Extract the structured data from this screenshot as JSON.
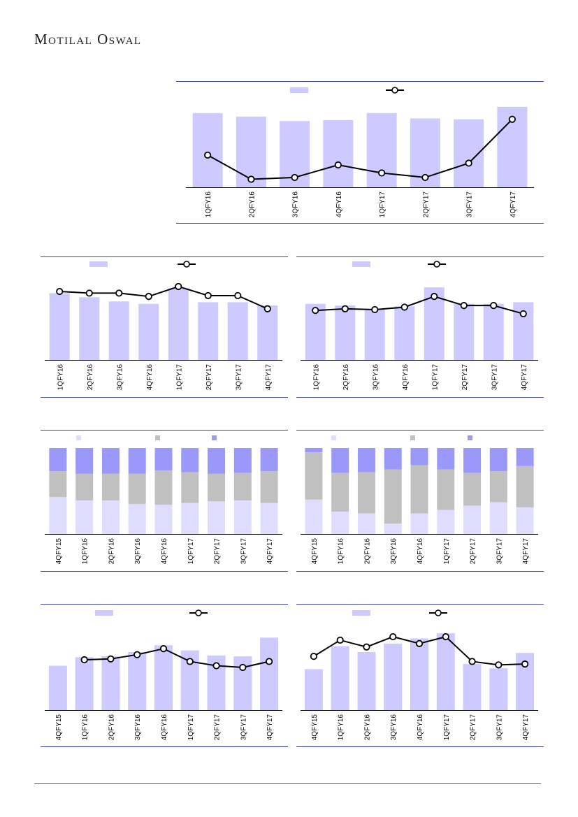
{
  "header": {
    "brand": "Motilal Oswal"
  },
  "colors": {
    "bar": "#cccaff",
    "line": "#000000",
    "rule": "#3b3f9a",
    "seg_light": "#dedcff",
    "seg_grey": "#c0c0c0",
    "seg_dark": "#9a98f8"
  },
  "chart_data": [
    {
      "type": "bar",
      "categories": [
        "1QFY16",
        "2QFY16",
        "3QFY16",
        "4QFY16",
        "1QFY17",
        "2QFY17",
        "3QFY17",
        "4QFY17"
      ],
      "series": [
        {
          "values": [
            83,
            79,
            74,
            75,
            83,
            77,
            76,
            90
          ]
        },
        {
          "values": [
            36,
            9,
            11,
            25,
            16,
            11,
            27,
            76
          ]
        }
      ],
      "ylim": [
        0,
        100
      ]
    },
    {
      "type": "bar",
      "categories": [
        "1QFY16",
        "2QFY16",
        "3QFY16",
        "4QFY16",
        "1QFY17",
        "2QFY17",
        "3QFY17",
        "4QFY17"
      ],
      "series": [
        {
          "values": [
            81,
            76,
            71,
            68,
            87,
            70,
            70,
            66
          ]
        },
        {
          "values": [
            83,
            81,
            81,
            77,
            89,
            78,
            78,
            62
          ]
        }
      ],
      "ylim": [
        0,
        100
      ]
    },
    {
      "type": "bar",
      "categories": [
        "1QFY16",
        "2QFY16",
        "3QFY16",
        "4QFY16",
        "1QFY17",
        "2QFY17",
        "3QFY17",
        "4QFY17"
      ],
      "series": [
        {
          "values": [
            68,
            66,
            62,
            65,
            88,
            68,
            68,
            70
          ]
        },
        {
          "values": [
            60,
            62,
            61,
            64,
            77,
            66,
            66,
            56
          ]
        }
      ],
      "ylim": [
        0,
        100
      ]
    },
    {
      "type": "bar",
      "stacked": true,
      "categories": [
        "4QFY15",
        "1QFY16",
        "2QFY16",
        "3QFY16",
        "4QFY16",
        "1QFY17",
        "2QFY17",
        "3QFY17",
        "4QFY17"
      ],
      "series": [
        {
          "values": [
            43,
            39,
            39,
            35,
            34,
            36,
            38,
            39,
            36
          ]
        },
        {
          "values": [
            30,
            31,
            31,
            35,
            40,
            36,
            32,
            32,
            37
          ]
        },
        {
          "values": [
            27,
            30,
            30,
            30,
            26,
            28,
            30,
            29,
            27
          ]
        }
      ],
      "ylim": [
        0,
        100
      ]
    },
    {
      "type": "bar",
      "stacked": true,
      "categories": [
        "4QFY15",
        "1QFY16",
        "2QFY16",
        "3QFY16",
        "4QFY16",
        "1QFY17",
        "2QFY17",
        "3QFY17",
        "4QFY17"
      ],
      "series": [
        {
          "values": [
            40,
            26,
            24,
            12,
            24,
            28,
            33,
            37,
            31
          ]
        },
        {
          "values": [
            55,
            45,
            48,
            63,
            56,
            47,
            38,
            36,
            48
          ]
        },
        {
          "values": [
            5,
            29,
            28,
            25,
            20,
            25,
            29,
            27,
            21
          ]
        }
      ],
      "ylim": [
        0,
        100
      ]
    },
    {
      "type": "bar",
      "categories": [
        "4QFY15",
        "1QFY16",
        "2QFY16",
        "3QFY16",
        "4QFY16",
        "1QFY17",
        "2QFY17",
        "3QFY17",
        "4QFY17"
      ],
      "series": [
        {
          "values": [
            52,
            62,
            63,
            68,
            76,
            70,
            64,
            63,
            85
          ]
        },
        {
          "values": [
            null,
            59,
            60,
            65,
            72,
            57,
            52,
            50,
            57
          ]
        }
      ],
      "ylim": [
        0,
        100
      ]
    },
    {
      "type": "bar",
      "categories": [
        "4QFY15",
        "1QFY16",
        "2QFY16",
        "3QFY16",
        "4QFY16",
        "1QFY17",
        "2QFY17",
        "3QFY17",
        "4QFY17"
      ],
      "series": [
        {
          "values": [
            48,
            75,
            68,
            78,
            84,
            90,
            54,
            49,
            67
          ]
        },
        {
          "values": [
            63,
            82,
            74,
            86,
            78,
            86,
            57,
            53,
            54
          ]
        }
      ],
      "ylim": [
        0,
        100
      ]
    }
  ]
}
